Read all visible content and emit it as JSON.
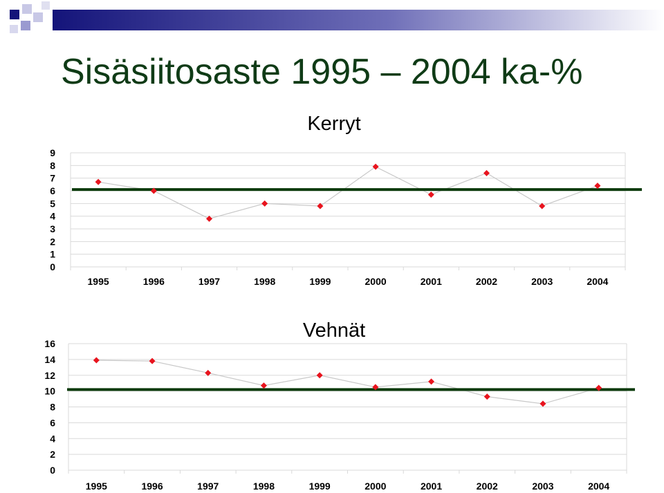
{
  "slide": {
    "title": "Sisäsiitosaste 1995 – 2004 ka-%"
  },
  "colors": {
    "title": "#0f3b16",
    "banner_dark": "#14147a",
    "banner_light": "#c8c8e6",
    "point": "#e8141e",
    "line": "#c8c8c8",
    "mean_line": "#0a3a0a",
    "grid": "#d9d9d9"
  },
  "chart_data": [
    {
      "type": "line",
      "title": "Kerryt",
      "categories": [
        "1995",
        "1996",
        "1997",
        "1998",
        "1999",
        "2000",
        "2001",
        "2002",
        "2003",
        "2004"
      ],
      "series": [
        {
          "values": [
            6.7,
            6.0,
            3.8,
            5.0,
            4.8,
            7.9,
            5.7,
            7.4,
            4.8,
            6.4
          ]
        }
      ],
      "mean_line": 6.1,
      "ylim": [
        0,
        9
      ],
      "yticks": [
        "0",
        "1",
        "2",
        "3",
        "4",
        "5",
        "6",
        "7",
        "8",
        "9"
      ],
      "grid": true,
      "legend": "none"
    },
    {
      "type": "line",
      "title": "Vehnät",
      "categories": [
        "1995",
        "1996",
        "1997",
        "1998",
        "1999",
        "2000",
        "2001",
        "2002",
        "2003",
        "2004"
      ],
      "series": [
        {
          "values": [
            13.9,
            13.8,
            12.3,
            10.7,
            12.0,
            10.5,
            11.2,
            9.3,
            8.4,
            10.4
          ]
        }
      ],
      "mean_line": 10.2,
      "ylim": [
        0,
        16
      ],
      "yticks": [
        "0",
        "2",
        "4",
        "6",
        "8",
        "10",
        "12",
        "14",
        "16"
      ],
      "grid": true,
      "legend": "none"
    }
  ]
}
